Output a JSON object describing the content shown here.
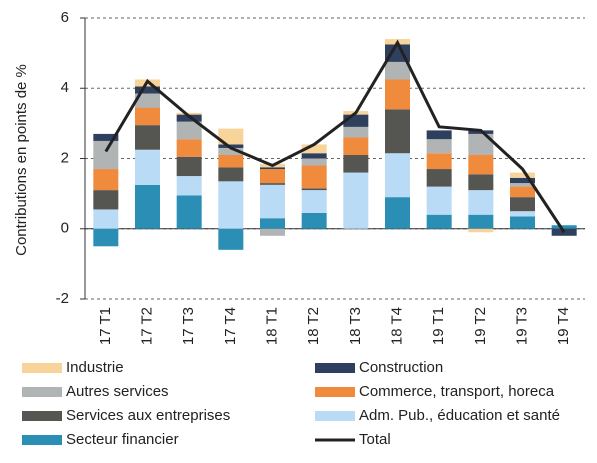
{
  "chart_data": {
    "type": "stacked-bar-line",
    "y_label": "Contributions en points de %",
    "categories": [
      "17 T1",
      "17 T2",
      "17 T3",
      "17 T4",
      "18 T1",
      "18 T2",
      "18 T3",
      "18 T4",
      "19 T1",
      "19 T2",
      "19 T3",
      "19 T4"
    ],
    "ylim": [
      -2,
      6
    ],
    "yticks": [
      -2,
      0,
      2,
      4,
      6
    ],
    "grid": true,
    "series": [
      {
        "name": "Secteur financier",
        "color": "#2b8fb5",
        "values": [
          -0.5,
          1.25,
          0.95,
          -0.6,
          0.3,
          0.45,
          0.0,
          0.9,
          0.4,
          0.4,
          0.35,
          0.1
        ]
      },
      {
        "name": "Adm. Pub., éducation et santé",
        "color": "#b9dbf5",
        "values": [
          0.55,
          1.0,
          0.55,
          1.35,
          0.95,
          0.65,
          1.6,
          1.25,
          0.8,
          0.7,
          0.15,
          0.0
        ]
      },
      {
        "name": "Services aux entreprises",
        "color": "#555552",
        "values": [
          0.55,
          0.7,
          0.55,
          0.4,
          0.05,
          0.05,
          0.5,
          1.25,
          0.5,
          0.45,
          0.4,
          0.0
        ]
      },
      {
        "name": "Commerce, transport, horeca",
        "color": "#f08a3c",
        "values": [
          0.6,
          0.5,
          0.5,
          0.35,
          0.4,
          0.65,
          0.5,
          0.85,
          0.45,
          0.55,
          0.3,
          0.0
        ]
      },
      {
        "name": "Autres services",
        "color": "#b0b4b4",
        "values": [
          0.8,
          0.4,
          0.5,
          0.2,
          -0.2,
          0.2,
          0.3,
          0.5,
          0.4,
          0.6,
          0.1,
          0.0
        ]
      },
      {
        "name": "Construction",
        "color": "#2f3f5e",
        "values": [
          0.2,
          0.2,
          0.2,
          0.1,
          0.05,
          0.15,
          0.35,
          0.5,
          0.25,
          0.1,
          0.15,
          -0.2
        ]
      },
      {
        "name": "Industrie",
        "color": "#f8d49a",
        "values": [
          0.0,
          0.2,
          0.05,
          0.45,
          0.1,
          0.25,
          0.1,
          0.15,
          0.0,
          -0.1,
          0.15,
          0.0
        ]
      },
      {
        "name": "Total",
        "color": "#222222",
        "line": true,
        "values": [
          2.2,
          4.2,
          3.2,
          2.3,
          1.8,
          2.4,
          3.3,
          5.3,
          2.9,
          2.8,
          1.7,
          -0.1
        ]
      }
    ],
    "legend_order": [
      6,
      5,
      4,
      3,
      2,
      1,
      0,
      7
    ]
  }
}
